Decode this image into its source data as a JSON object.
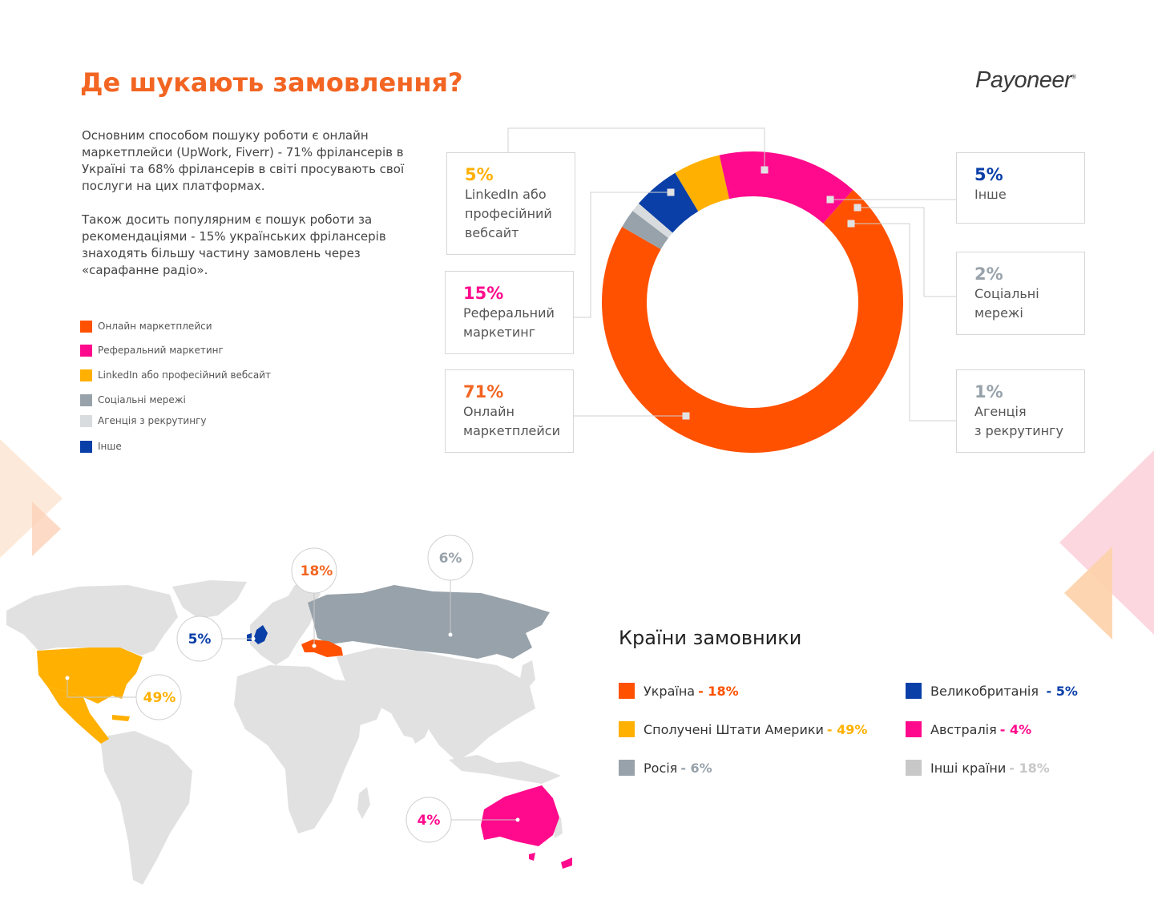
{
  "header": {
    "title": "Де шукають замовлення?",
    "logo_text": "Payoneer"
  },
  "intro": {
    "paragraph_1": "Основним способом пошуку роботи є онлайн маркетплейси (UpWork, Fiverr) - 71% фрілансерів в Україні та 68% фрілансерів в світі просувають свої послуги на цих платформах.",
    "paragraph_2": "Також досить популярним є пошук роботи за рекомендаціями - 15% українських фрілансерів знаходять більшу частину замовлень через «сарафанне радіо»."
  },
  "colors": {
    "orange": "#ff5100",
    "pink": "#ff0a8c",
    "yellow": "#ffb000",
    "gray": "#98a2aa",
    "light_gray": "#d9dcde",
    "blue": "#0a3fa8",
    "map_gray": "#e1e1e1"
  },
  "chart_data": [
    {
      "type": "pie",
      "donut": true,
      "slices": [
        {
          "label": "Онлайн маркетплейси",
          "callout_label": "Онлайн\nмаркетплейси",
          "pct_label": "71%",
          "value": 71,
          "color": "#ff5100"
        },
        {
          "label": "Реферальний маркетинг",
          "callout_label": "Реферальний\nмаркетинг",
          "pct_label": "15%",
          "value": 15,
          "color": "#ff0a8c"
        },
        {
          "label": "LinkedIn або професійний вебсайт",
          "callout_label": "LinkedIn або\nпрофесійний\nвебсайт",
          "pct_label": "5%",
          "value": 5,
          "color": "#ffb000"
        },
        {
          "label": "Інше",
          "callout_label": "Інше",
          "pct_label": "5%",
          "value": 5,
          "color": "#0a3fa8"
        },
        {
          "label": "Агенція з рекрутингу",
          "callout_label": "Агенція\nз рекрутингу",
          "pct_label": "1%",
          "value": 1,
          "color": "#d9dcde"
        },
        {
          "label": "Соціальні мережі",
          "callout_label": "Соціальні\nмережі",
          "pct_label": "2%",
          "value": 2,
          "color": "#98a2aa"
        }
      ],
      "legend": [
        {
          "label": "Онлайн маркетплейси",
          "color": "#ff5100"
        },
        {
          "label": "Реферальний маркетинг",
          "color": "#ff0a8c"
        },
        {
          "label": "LinkedIn або професійний вебсайт",
          "color": "#ffb000"
        },
        {
          "label": "Соціальні мережі",
          "color": "#98a2aa"
        },
        {
          "label": "Агенція з рекрутингу",
          "color": "#d9dcde"
        },
        {
          "label": "Інше",
          "color": "#0a3fa8"
        }
      ]
    },
    {
      "type": "table",
      "title": "Країни замовники",
      "rows": [
        {
          "country": "Україна",
          "value_label": "- 18%",
          "value": 18,
          "color": "#ff5100",
          "map_label": "18%"
        },
        {
          "country": "Сполучені Штати Америки",
          "value_label": "- 49%",
          "value": 49,
          "color": "#ffb000",
          "map_label": "49%"
        },
        {
          "country": "Росія",
          "value_label": "- 6%",
          "value": 6,
          "color": "#98a2aa",
          "map_label": "6%"
        },
        {
          "country": "Великобританія",
          "value_label": " - 5%",
          "value": 5,
          "color": "#0a3fa8",
          "map_label": "5%"
        },
        {
          "country": "Австралія",
          "value_label": "- 4%",
          "value": 4,
          "color": "#ff0a8c",
          "map_label": "4%"
        },
        {
          "country": "Інші країни",
          "value_label": "- 18%",
          "value": 18,
          "color": "#c8c8c8"
        }
      ]
    }
  ]
}
